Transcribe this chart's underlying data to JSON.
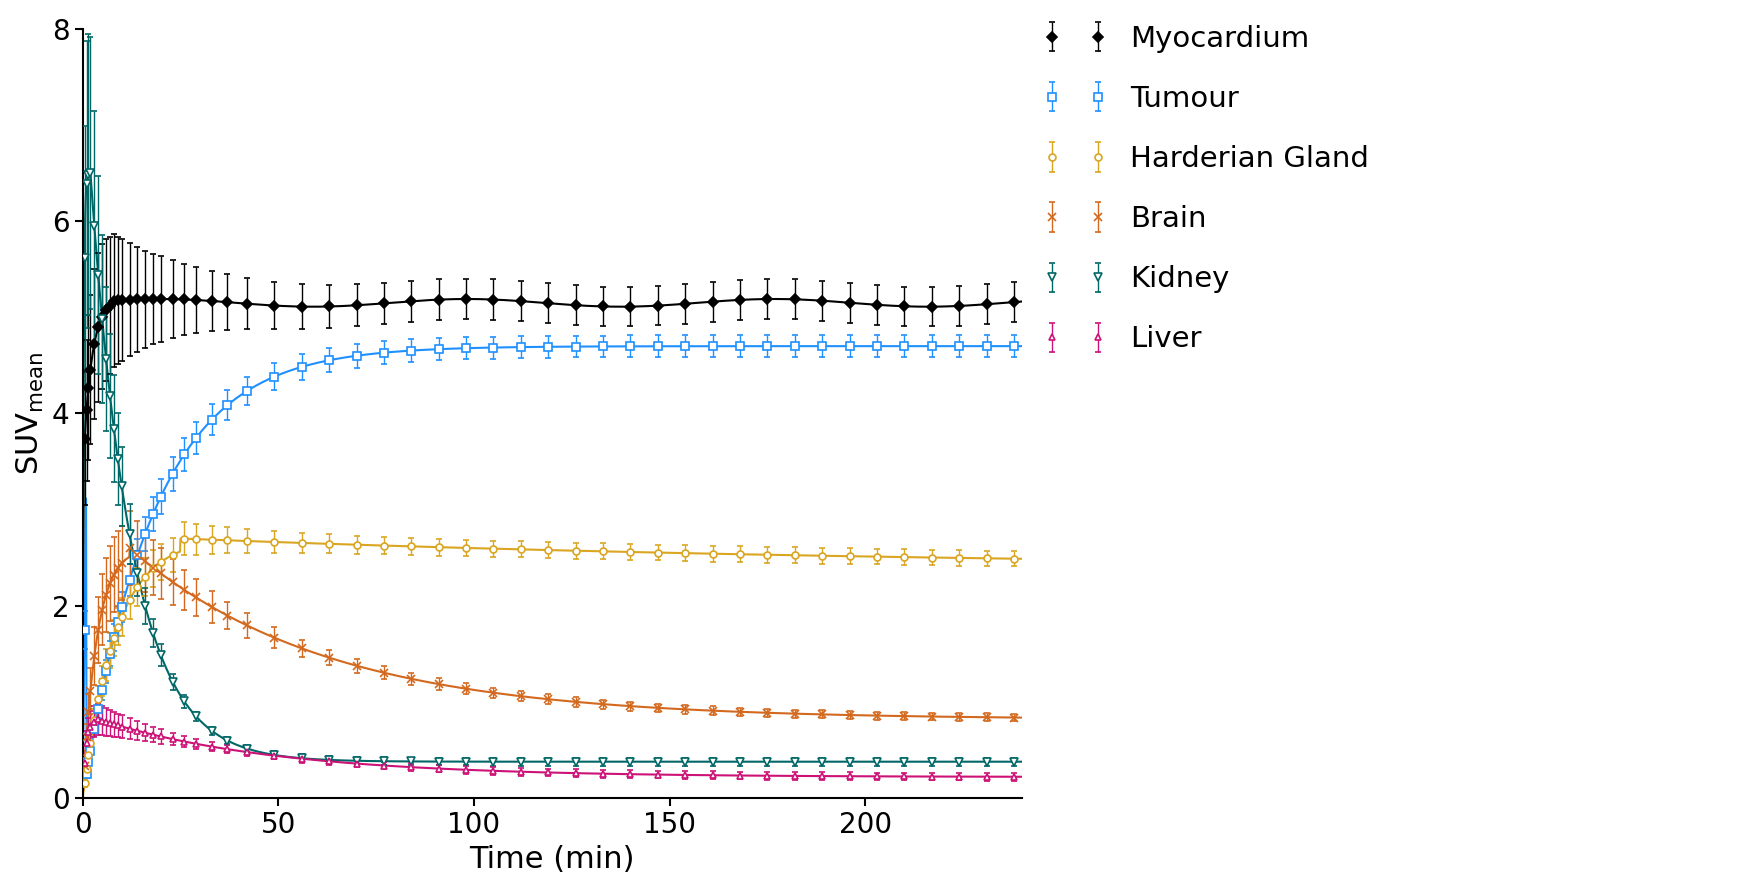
{
  "xlabel": "Time (min)",
  "ylabel": "SUV$_{mean}$",
  "xlim": [
    0,
    240
  ],
  "ylim": [
    0,
    8
  ],
  "yticks": [
    0,
    2,
    4,
    6,
    8
  ],
  "xticks": [
    0,
    50,
    100,
    150,
    200
  ],
  "series": {
    "Myocardium": {
      "color": "#000000",
      "marker": "D",
      "markersize": 5,
      "linewidth": 1.5
    },
    "Tumour": {
      "color": "#1E90FF",
      "marker": "s",
      "markersize": 6,
      "linewidth": 1.5
    },
    "Harderian Gland": {
      "color": "#DAA520",
      "marker": "o",
      "markersize": 5,
      "linewidth": 1.5
    },
    "Brain": {
      "color": "#D2691E",
      "marker": "x",
      "markersize": 6,
      "linewidth": 1.5
    },
    "Kidney": {
      "color": "#006666",
      "marker": "v",
      "markersize": 6,
      "linewidth": 1.5
    },
    "Liver": {
      "color": "#CC1177",
      "marker": "^",
      "markersize": 5,
      "linewidth": 1.5
    }
  },
  "background_color": "#ffffff",
  "legend_fontsize": 21,
  "axis_fontsize": 22,
  "tick_fontsize": 20
}
